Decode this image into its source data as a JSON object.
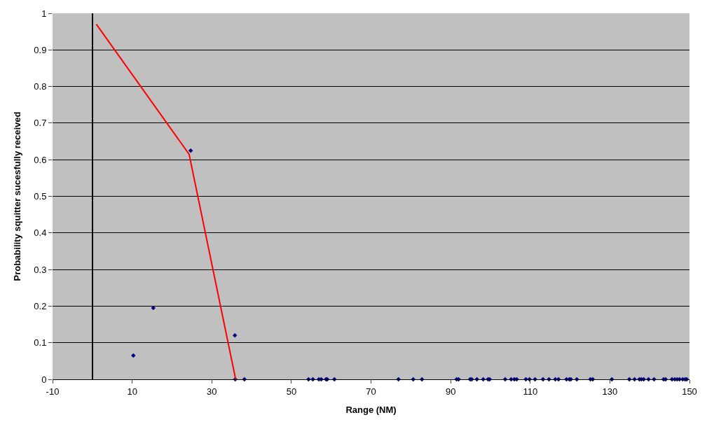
{
  "chart_data": {
    "type": "scatter",
    "xlabel": "Range (NM)",
    "ylabel": "Probability squitter sucesfully received",
    "xlim": [
      -10,
      150
    ],
    "xticks": [
      -10,
      10,
      30,
      50,
      70,
      90,
      110,
      130,
      150
    ],
    "ylim": [
      0,
      1
    ],
    "yticks": [
      0,
      0.1,
      0.2,
      0.3,
      0.4,
      0.5,
      0.6,
      0.7,
      0.8,
      0.9,
      1
    ],
    "grid": "y",
    "series": [
      {
        "color": "#000080",
        "marker": "diamond",
        "x": [
          10.3,
          15.3,
          24.7,
          35.8,
          35.9,
          38.2,
          54.3,
          55.4,
          56.9,
          57.5,
          58.7,
          59.0,
          60.8,
          76.9,
          80.6,
          82.8,
          91.5,
          92.0,
          94.9,
          95.3,
          96.6,
          98.2,
          99.4,
          99.8,
          103.7,
          105.2,
          106.0,
          106.6,
          108.9,
          109.8,
          111.2,
          113.2,
          114.7,
          116.3,
          117.1,
          119.1,
          119.8,
          120.2,
          121.7,
          125.1,
          125.7,
          130.5,
          134.9,
          136.2,
          137.4,
          137.9,
          138.5,
          139.7,
          141.1,
          143.5,
          144.0,
          145.6,
          146.3,
          146.9,
          147.5,
          148.3,
          148.9,
          149.3
        ],
        "values": [
          0.065,
          0.195,
          0.625,
          0.12,
          0,
          0,
          0,
          0,
          0,
          0,
          0,
          0,
          0,
          0,
          0,
          0,
          0,
          0,
          0,
          0,
          0,
          0,
          0,
          0,
          0,
          0,
          0,
          0,
          0,
          0,
          0,
          0,
          0,
          0,
          0,
          0,
          0,
          0,
          0,
          0,
          0,
          0,
          0,
          0,
          0,
          0,
          0,
          0,
          0,
          0,
          0,
          0,
          0,
          0,
          0,
          0,
          0,
          0
        ]
      },
      {
        "type": "line",
        "color": "#ff0000",
        "marker": "none",
        "line_style": "solid",
        "x": [
          1,
          24.3,
          36
        ],
        "values": [
          0.97,
          0.615,
          0
        ]
      }
    ]
  }
}
